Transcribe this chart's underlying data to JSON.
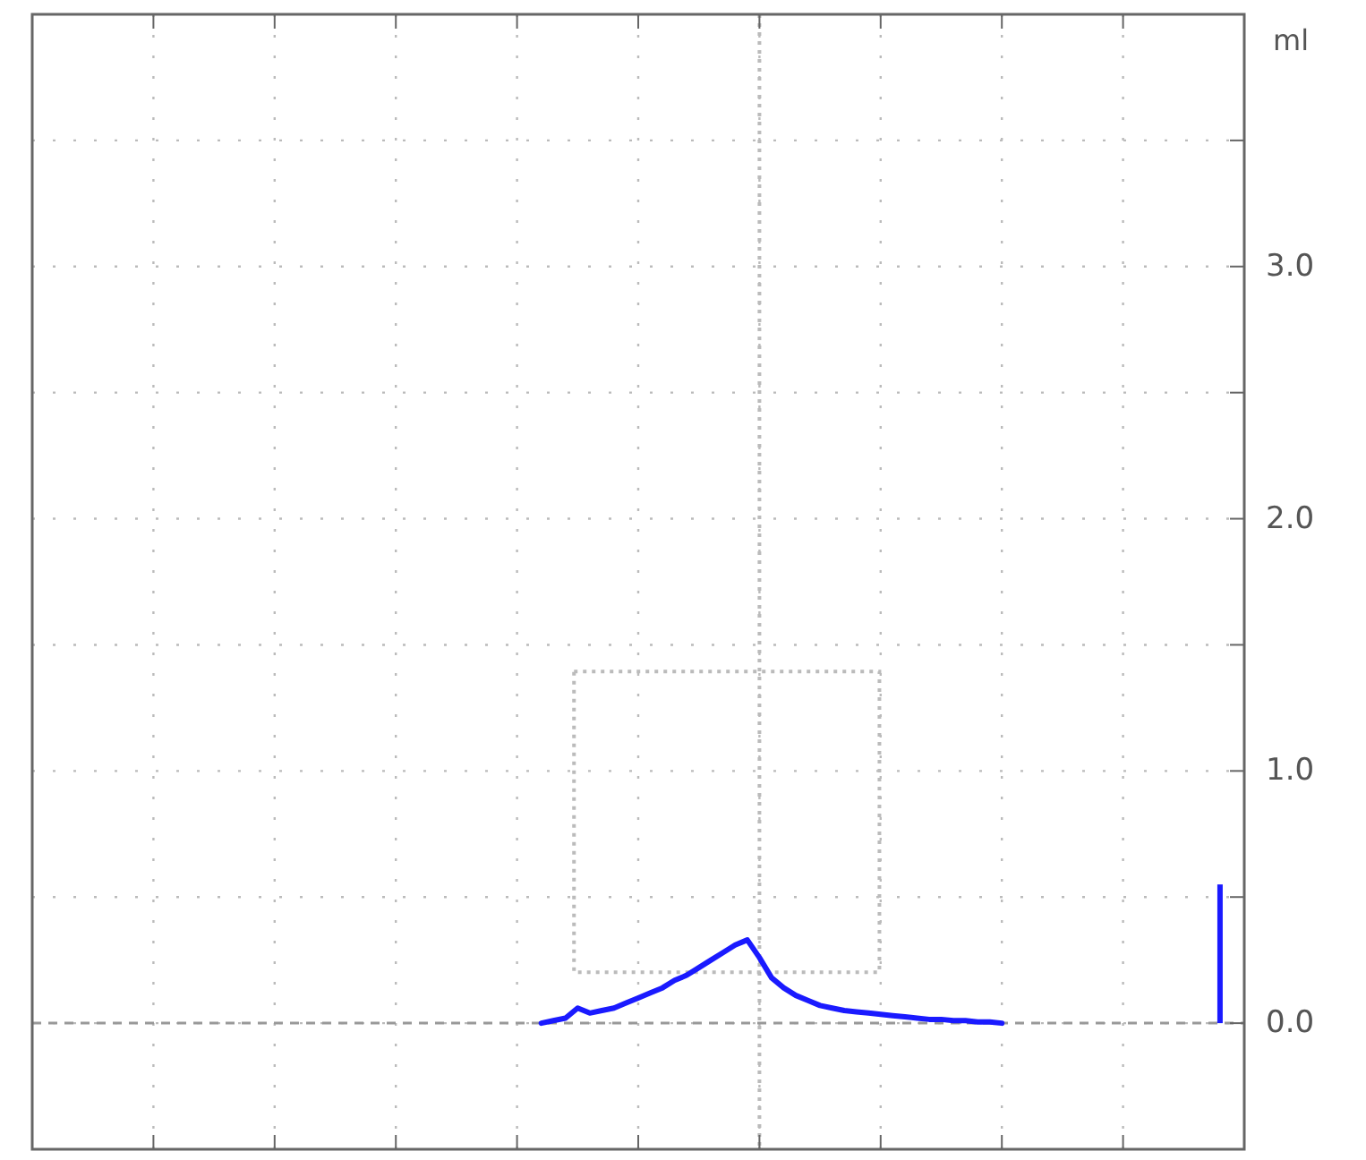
{
  "chart_data": {
    "type": "line",
    "ylabel": "ml",
    "categories": [
      null,
      null,
      null,
      null,
      null,
      null,
      null,
      null,
      null,
      null,
      null,
      null,
      null,
      null,
      null,
      null,
      null,
      null,
      null,
      null,
      null,
      null,
      null,
      null,
      null,
      null,
      null,
      null,
      null,
      null,
      null,
      null,
      null,
      null,
      null,
      null,
      null,
      null,
      null,
      null,
      null,
      null,
      null,
      null,
      null,
      null,
      null,
      null,
      null,
      null,
      null,
      null,
      null,
      null,
      null,
      null,
      null,
      null,
      null,
      null,
      null,
      null,
      null,
      null,
      null,
      null,
      null,
      null,
      null,
      null,
      null,
      null,
      null,
      null,
      null,
      null,
      null,
      null,
      null,
      null,
      null,
      null,
      null,
      null,
      null,
      null,
      null,
      null,
      null,
      null,
      null,
      null,
      null,
      null,
      null,
      null,
      null,
      null,
      null,
      null,
      null
    ],
    "ylim": [
      -0.5,
      4.0
    ],
    "yticks": [
      {
        "value": 0,
        "label": "0.0"
      },
      {
        "value": 0.5,
        "label": null
      },
      {
        "value": 1,
        "label": "1.0"
      },
      {
        "value": 1.5,
        "label": null
      },
      {
        "value": 2,
        "label": "2.0"
      },
      {
        "value": 2.5,
        "label": null
      },
      {
        "value": 3,
        "label": "3.0"
      },
      {
        "value": 3.5,
        "label": null
      }
    ],
    "tick_labels": "y",
    "grid": true,
    "ref_lines": [
      {
        "axis": "y",
        "value": 0,
        "color": "#999999",
        "line_style": "dashed"
      }
    ],
    "series": [
      {
        "color": "#1a1aff",
        "line_style": "solid",
        "values": [
          null,
          null,
          null,
          null,
          null,
          null,
          null,
          null,
          null,
          null,
          null,
          null,
          null,
          null,
          null,
          null,
          null,
          null,
          null,
          null,
          null,
          null,
          null,
          null,
          null,
          null,
          null,
          null,
          null,
          null,
          null,
          null,
          null,
          null,
          null,
          null,
          null,
          null,
          null,
          null,
          null,
          null,
          0.0,
          0.01,
          0.02,
          0.06,
          0.04,
          0.05,
          0.06,
          0.08,
          0.1,
          0.12,
          0.14,
          0.17,
          0.19,
          0.22,
          0.25,
          0.28,
          0.31,
          0.33,
          0.26,
          0.18,
          0.14,
          0.11,
          0.09,
          0.07,
          0.06,
          0.05,
          0.045,
          0.04,
          0.035,
          0.03,
          0.025,
          0.02,
          0.015,
          0.015,
          0.01,
          0.01,
          0.005,
          0.005,
          0.0,
          null,
          null,
          null,
          null,
          null,
          null,
          null,
          null,
          null,
          null,
          null,
          null,
          null,
          null,
          null,
          null,
          null,
          null,
          null,
          null
        ]
      },
      {
        "type": "bar",
        "color": "#1a1aff",
        "values": [
          null,
          null,
          null,
          null,
          null,
          null,
          null,
          null,
          null,
          null,
          null,
          null,
          null,
          null,
          null,
          null,
          null,
          null,
          null,
          null,
          null,
          null,
          null,
          null,
          null,
          null,
          null,
          null,
          null,
          null,
          null,
          null,
          null,
          null,
          null,
          null,
          null,
          null,
          null,
          null,
          null,
          null,
          null,
          null,
          null,
          null,
          null,
          null,
          null,
          null,
          null,
          null,
          null,
          null,
          null,
          null,
          null,
          null,
          null,
          null,
          null,
          null,
          null,
          null,
          null,
          null,
          null,
          null,
          null,
          null,
          null,
          null,
          null,
          null,
          null,
          null,
          null,
          null,
          null,
          null,
          null,
          null,
          null,
          null,
          null,
          null,
          null,
          null,
          null,
          null,
          null,
          null,
          null,
          null,
          null,
          null,
          null,
          null,
          0.55,
          null,
          null
        ]
      }
    ]
  }
}
